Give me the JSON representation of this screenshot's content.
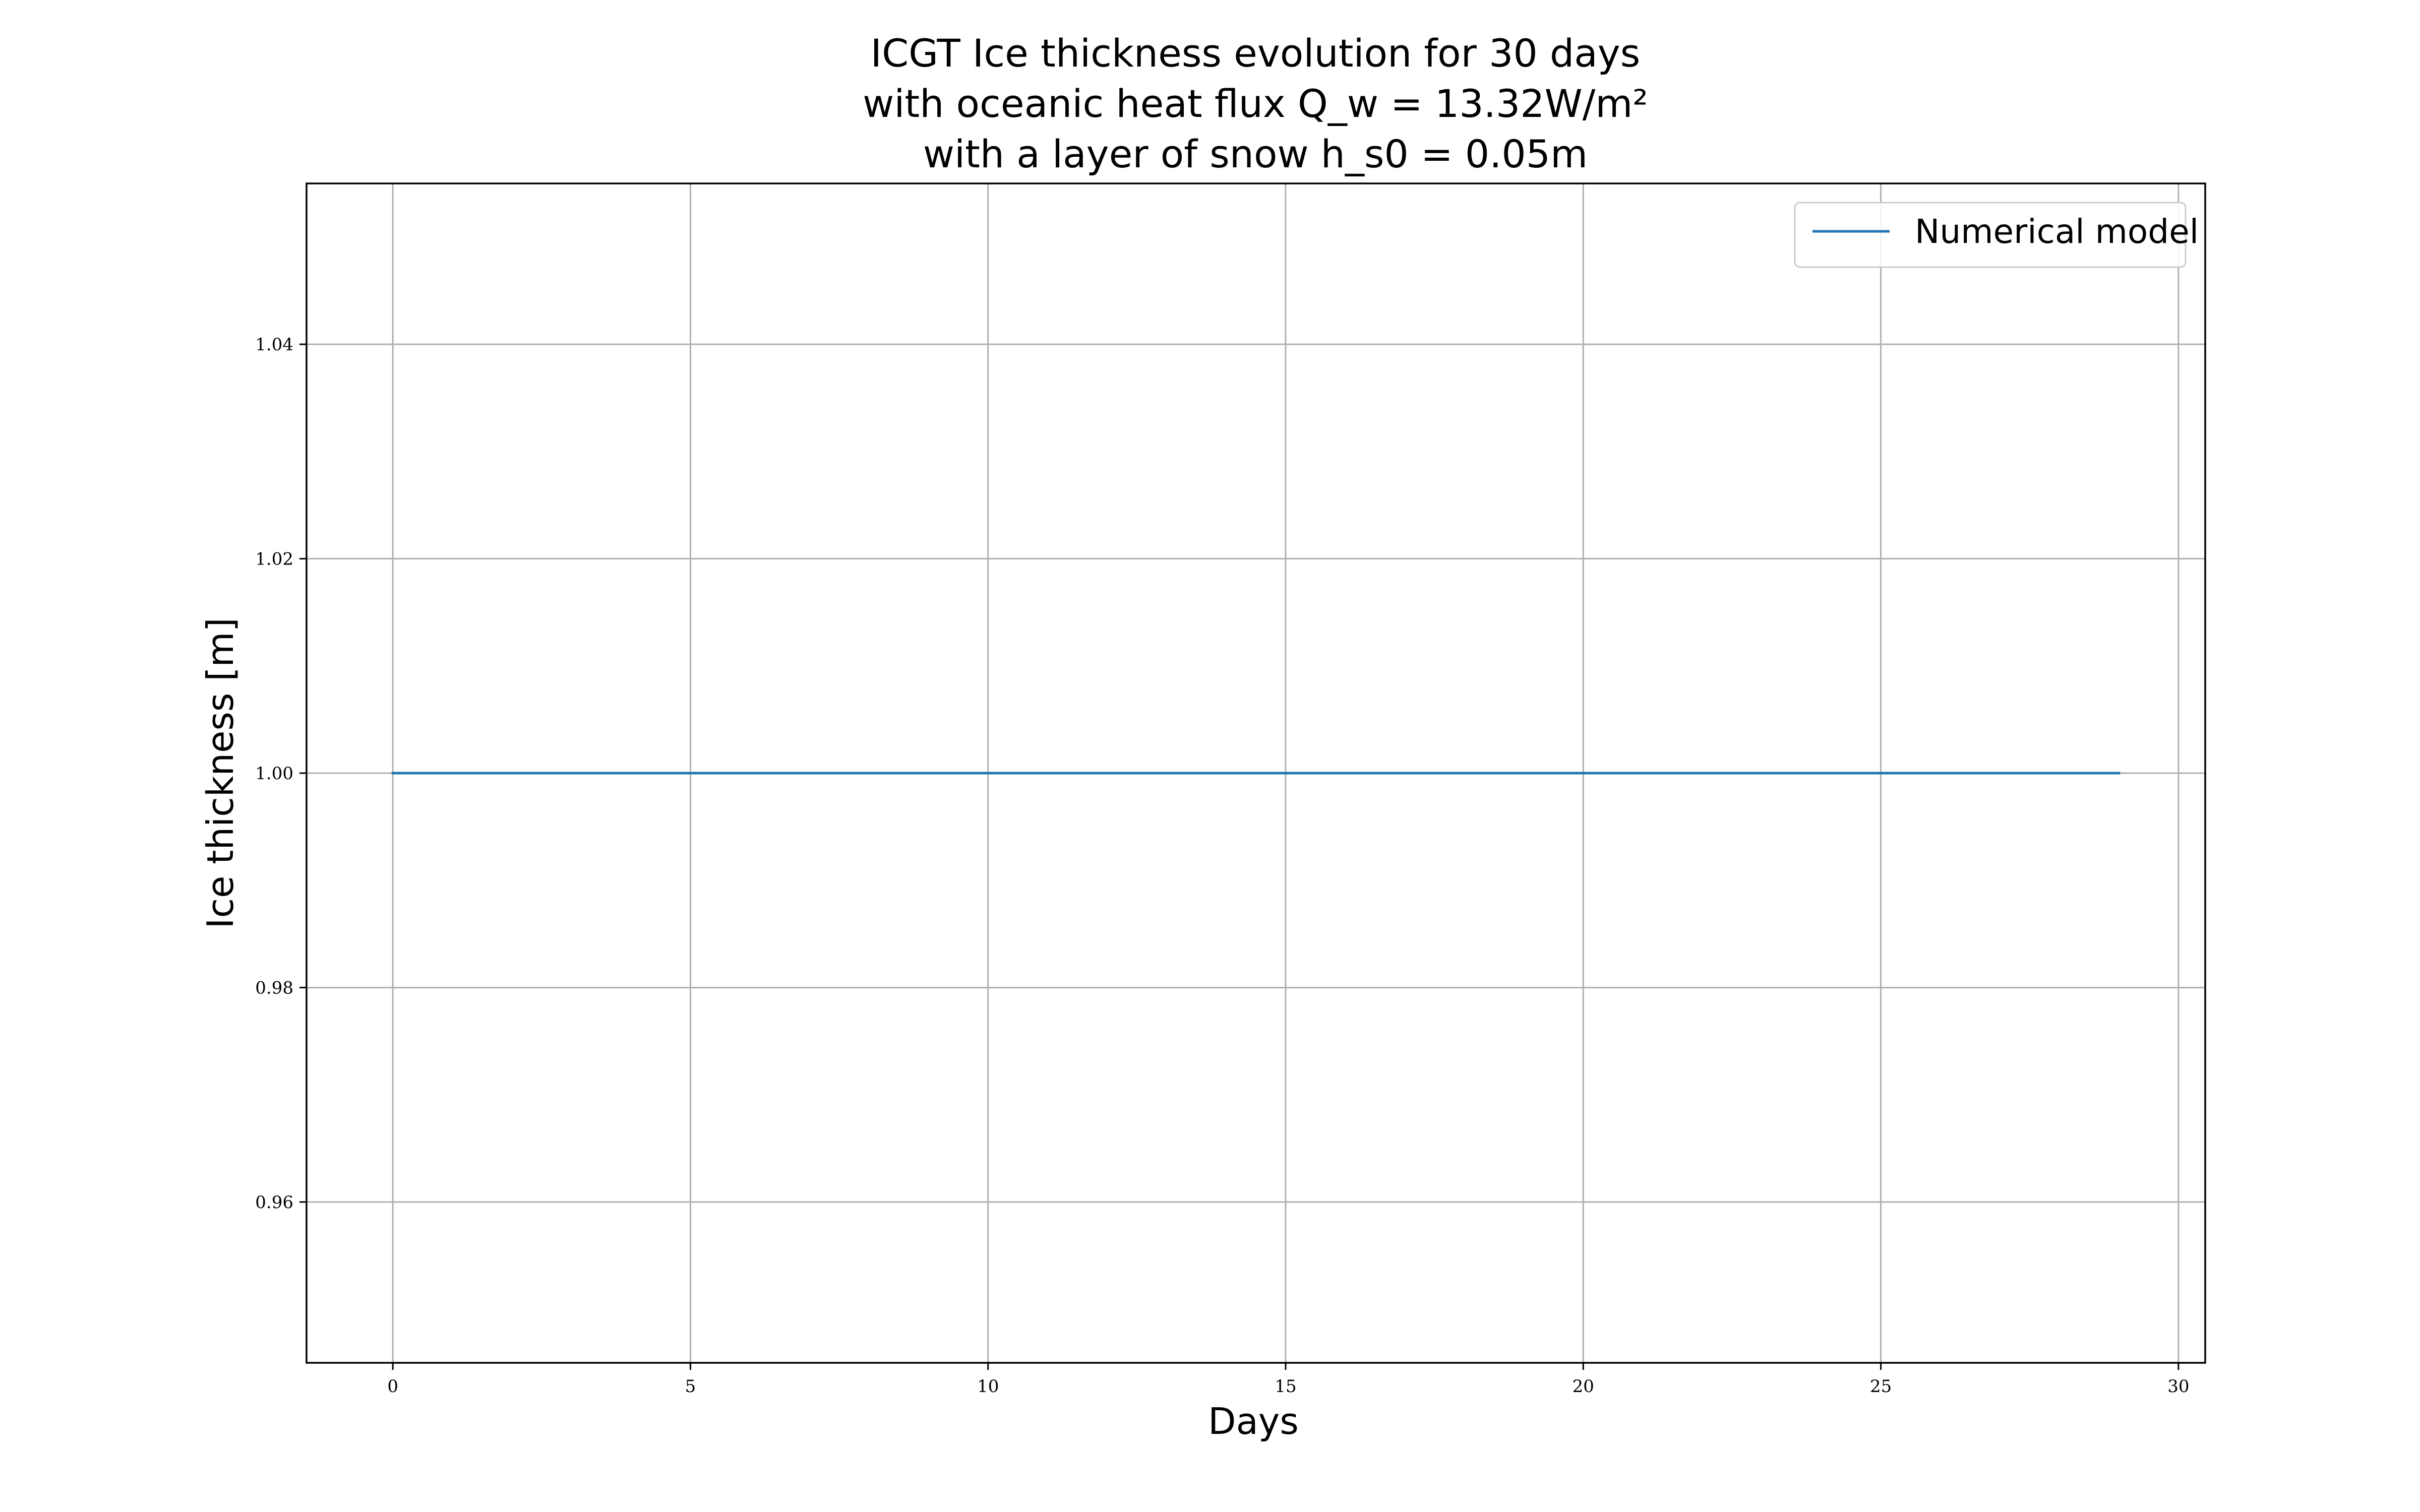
{
  "chart_data": {
    "type": "line",
    "title_lines": [
      "ICGT Ice thickness evolution for 30 days",
      "with oceanic heat flux Q_w = 13.32W/m²",
      "with a layer of snow h_s0 = 0.05m"
    ],
    "xlabel": "Days",
    "ylabel": "Ice thickness [m]",
    "xlim": [
      -1.45,
      30.45
    ],
    "ylim": [
      0.945,
      1.055
    ],
    "xticks": [
      0,
      5,
      10,
      15,
      20,
      25,
      30
    ],
    "xtick_labels": [
      "0",
      "5",
      "10",
      "15",
      "20",
      "25",
      "30"
    ],
    "yticks": [
      0.96,
      0.98,
      1.0,
      1.02,
      1.04
    ],
    "ytick_labels": [
      "0.96",
      "0.98",
      "1.00",
      "1.02",
      "1.04"
    ],
    "grid": true,
    "legend_placement": "top-right",
    "series": [
      {
        "name": "Numerical model",
        "color": "#1f77b4",
        "x": [
          0,
          1,
          2,
          3,
          4,
          5,
          6,
          7,
          8,
          9,
          10,
          11,
          12,
          13,
          14,
          15,
          16,
          17,
          18,
          19,
          20,
          21,
          22,
          23,
          24,
          25,
          26,
          27,
          28,
          29
        ],
        "y": [
          1.0,
          1.0,
          1.0,
          1.0,
          1.0,
          1.0,
          1.0,
          1.0,
          1.0,
          1.0,
          1.0,
          1.0,
          1.0,
          1.0,
          1.0,
          1.0,
          1.0,
          1.0,
          1.0,
          1.0,
          1.0,
          1.0,
          1.0,
          1.0,
          1.0,
          1.0,
          1.0,
          1.0,
          1.0,
          1.0
        ]
      }
    ]
  }
}
